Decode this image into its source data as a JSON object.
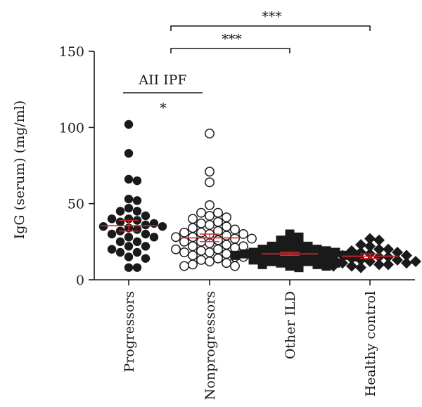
{
  "chart_data": {
    "type": "scatter",
    "title": "",
    "xlabel": "",
    "ylabel": "IgG (serum) (mg/ml)",
    "ylim": [
      0,
      150
    ],
    "yticks": [
      0,
      50,
      100,
      150
    ],
    "categories": [
      "Progressors",
      "Nonprogressors",
      "Other ILD",
      "Healthy control"
    ],
    "series": [
      {
        "category": "Progressors",
        "marker": "filled-circle",
        "mean": 35.5,
        "sem_low": 32,
        "sem_high": 39,
        "values": [
          102,
          83,
          66,
          65,
          53,
          52,
          47,
          45,
          45,
          42,
          40,
          40,
          39,
          38,
          37,
          36,
          35,
          35,
          34,
          33,
          32,
          30,
          30,
          28,
          28,
          25,
          25,
          22,
          22,
          20,
          18,
          18,
          15,
          14,
          8,
          8
        ]
      },
      {
        "category": "Nonprogressors",
        "marker": "open-circle",
        "mean": 27.5,
        "sem_low": 25,
        "sem_high": 30,
        "values": [
          96,
          71,
          64,
          49,
          44,
          44,
          42,
          41,
          40,
          38,
          37,
          36,
          35,
          34,
          33,
          32,
          31,
          31,
          30,
          30,
          29,
          28,
          28,
          27,
          27,
          26,
          25,
          25,
          24,
          23,
          22,
          22,
          21,
          20,
          20,
          19,
          18,
          18,
          17,
          16,
          15,
          15,
          14,
          13,
          12,
          11,
          10,
          9,
          9
        ]
      },
      {
        "category": "Other ILD",
        "marker": "filled-square",
        "mean": 17,
        "sem_low": 16,
        "sem_high": 18,
        "values": [
          30,
          28,
          26,
          24,
          23,
          22,
          22,
          21,
          20,
          20,
          19,
          19,
          18,
          18,
          18,
          17,
          17,
          17,
          16,
          16,
          16,
          15,
          15,
          15,
          14,
          14,
          13,
          13,
          12,
          12,
          11,
          11,
          10,
          10,
          9,
          9,
          8
        ]
      },
      {
        "category": "Healthy control",
        "marker": "filled-diamond",
        "mean": 15.5,
        "sem_low": 14,
        "sem_high": 17,
        "values": [
          27,
          26,
          23,
          22,
          20,
          20,
          19,
          18,
          18,
          17,
          16,
          16,
          15,
          15,
          14,
          14,
          13,
          13,
          12,
          12,
          11,
          11,
          10,
          10,
          9,
          9,
          8
        ]
      }
    ],
    "mean_color": "#d7262b",
    "point_color": "#1a1a1a",
    "annotations": [
      {
        "text": "***",
        "from": "Nonprogressors",
        "to": "Healthy control",
        "level": 1
      },
      {
        "text": "***",
        "from": "Nonprogressors",
        "to": "Other ILD",
        "level": 2
      },
      {
        "text": "AII IPF",
        "from": "Progressors",
        "to": "Nonprogressors",
        "level": 3
      },
      {
        "text": "*",
        "from": "Progressors",
        "to": "Nonprogressors",
        "level": 4
      }
    ]
  }
}
